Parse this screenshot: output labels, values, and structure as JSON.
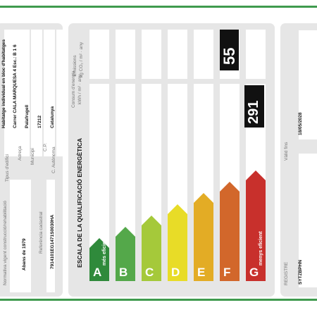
{
  "building": {
    "normativa_label": "Normativa vigent construcció/rehabilitació",
    "normativa_value": "Abans de 1979",
    "ref_label": "Referència cadastral",
    "ref_value": "7914101EG1471S0030HA",
    "tipus_label": "Tipus d'edifici",
    "tipus_value": "Habitatge individual en bloc d'habitatges",
    "adreca_label": "Adreça",
    "adreca_value": "Carrer CALA MARQUESA 4 Esc.: B 1 6",
    "municipi_label": "Municipi",
    "municipi_value": "Palafrugell",
    "cp_label": "C.P.",
    "cp_value": "17212",
    "ca_label": "C. Autònoma",
    "ca_value": "Catalunya"
  },
  "scale": {
    "title": "ESCALA DE LA QUALIFICACIÓ ENERGÈTICA",
    "consum_label": "Consum d'energia",
    "consum_unit": "kWh / m² · any",
    "emissions_label": "Emissions",
    "emissions_unit": "kg CO₂ / m² · any",
    "best_text": "més eficient",
    "worst_text": "menys eficient",
    "bars": [
      {
        "letter": "A",
        "color": "#2f8a3b",
        "level": 1
      },
      {
        "letter": "B",
        "color": "#54a84a",
        "level": 2
      },
      {
        "letter": "C",
        "color": "#a5c93a",
        "level": 3
      },
      {
        "letter": "D",
        "color": "#e8dc27",
        "level": 4
      },
      {
        "letter": "E",
        "color": "#e3ac25",
        "level": 5
      },
      {
        "letter": "F",
        "color": "#d2672b",
        "level": 6
      },
      {
        "letter": "G",
        "color": "#c8302c",
        "level": 7
      }
    ],
    "emissions_value": "55",
    "consum_value": "291"
  },
  "registry": {
    "registre_label": "REGISTRE",
    "registre_value": "SYTZBPHN",
    "valid_label": "Vàlid fins",
    "valid_value": "18/05/2028"
  }
}
